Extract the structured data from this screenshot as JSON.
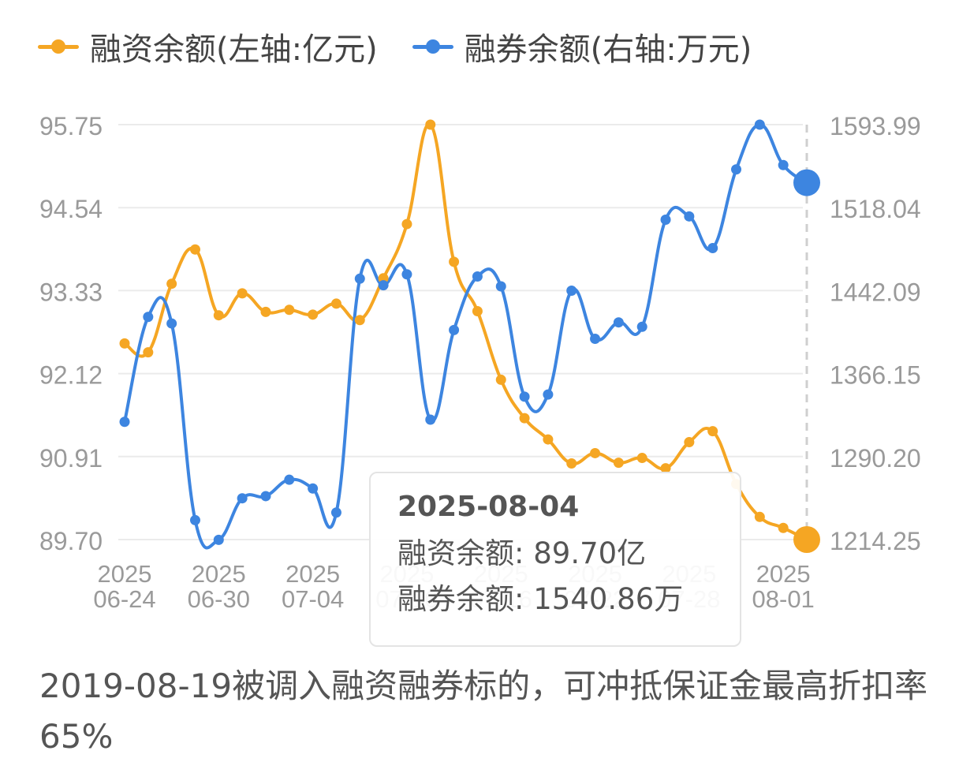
{
  "legend": {
    "financing_label": "融资余额(左轴:亿元)",
    "securities_label": "融券余额(右轴:万元)"
  },
  "colors": {
    "financing": "#f5a623",
    "securities": "#3d85e0",
    "grid": "#ebebeb",
    "axis_text": "#9a9a9a"
  },
  "tooltip": {
    "date": "2025-08-04",
    "financing_label": "融资余额:",
    "financing_value": "89.70亿",
    "securities_label": "融券余额:",
    "securities_value": "1540.86万"
  },
  "footer_note": "2019-08-19被调入融资融券标的，可冲抵保证金最高折扣率65%",
  "chart_data": {
    "type": "line",
    "x": [
      "2025-06-24",
      "2025-06-25",
      "2025-06-26",
      "2025-06-27",
      "2025-06-30",
      "2025-07-01",
      "2025-07-02",
      "2025-07-03",
      "2025-07-04",
      "2025-07-07",
      "2025-07-08",
      "2025-07-09",
      "2025-07-10",
      "2025-07-11",
      "2025-07-14",
      "2025-07-15",
      "2025-07-16",
      "2025-07-17",
      "2025-07-18",
      "2025-07-21",
      "2025-07-22",
      "2025-07-23",
      "2025-07-24",
      "2025-07-25",
      "2025-07-28",
      "2025-07-29",
      "2025-07-30",
      "2025-07-31",
      "2025-08-01",
      "2025-08-04"
    ],
    "x_tick_labels": [
      {
        "year": "2025",
        "date": "06-24"
      },
      {
        "year": "2025",
        "date": "06-30"
      },
      {
        "year": "2025",
        "date": "07-04"
      },
      {
        "year": "2025",
        "date": "07-10"
      },
      {
        "year": "2025",
        "date": "07-16"
      },
      {
        "year": "2025",
        "date": "07-22"
      },
      {
        "year": "2025",
        "date": "07-28"
      },
      {
        "year": "2025",
        "date": "08-01"
      }
    ],
    "x_tick_indices": [
      0,
      4,
      8,
      12,
      16,
      20,
      24,
      28
    ],
    "series": [
      {
        "name": "融资余额(左轴:亿元)",
        "axis": "left",
        "values": [
          92.56,
          92.43,
          93.43,
          93.93,
          92.97,
          93.29,
          93.02,
          93.05,
          92.98,
          93.14,
          92.9,
          93.51,
          94.3,
          95.75,
          93.75,
          93.03,
          92.03,
          91.47,
          91.16,
          90.81,
          90.96,
          90.82,
          90.89,
          90.74,
          91.12,
          91.28,
          90.51,
          90.03,
          89.87,
          89.7
        ]
      },
      {
        "name": "融券余额(右轴:万元)",
        "axis": "right",
        "values": [
          1322,
          1418,
          1412,
          1232,
          1214,
          1252,
          1254,
          1269,
          1261,
          1239,
          1453,
          1447,
          1457,
          1324,
          1406,
          1455,
          1446,
          1345,
          1347,
          1442,
          1398,
          1413,
          1409,
          1507,
          1510,
          1481,
          1553,
          1594,
          1557,
          1540.86
        ]
      }
    ],
    "y_left": {
      "ticks": [
        "95.75",
        "94.54",
        "93.33",
        "92.12",
        "90.91",
        "89.70"
      ],
      "min": 89.7,
      "max": 95.75
    },
    "y_right": {
      "ticks": [
        "1593.99",
        "1518.04",
        "1442.09",
        "1366.15",
        "1290.20",
        "1214.25"
      ],
      "min": 1214.25,
      "max": 1593.99
    },
    "highlight_index": 29,
    "grid": true,
    "legend_position": "top-left"
  }
}
